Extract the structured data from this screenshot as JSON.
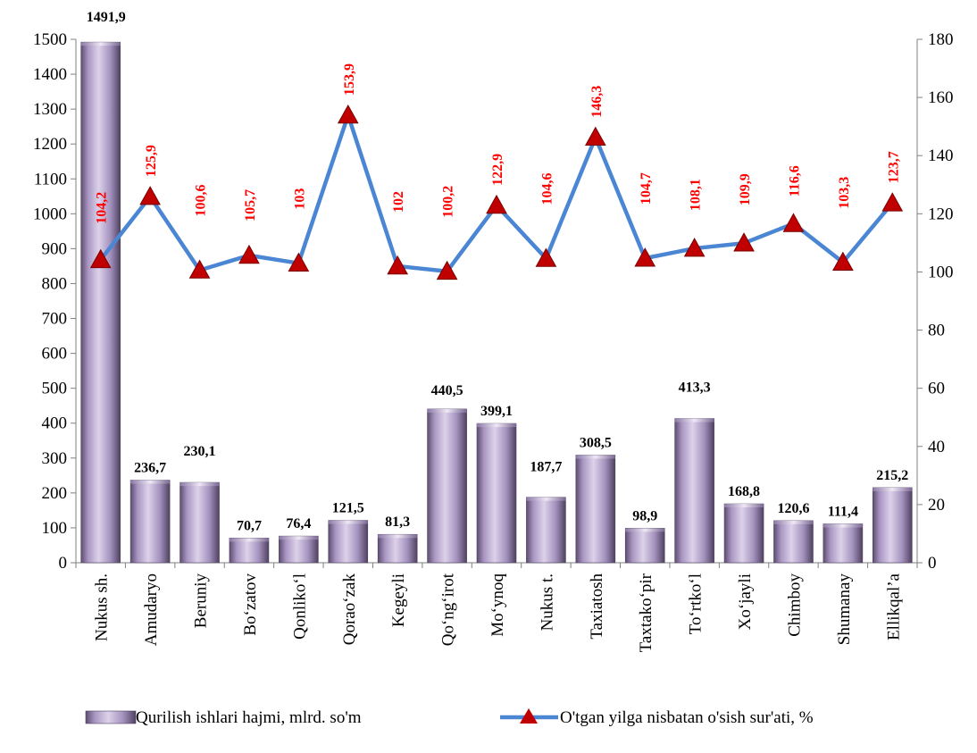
{
  "chart_data": {
    "type": "bar+line",
    "categories": [
      "Nukus sh.",
      "Amudaryo",
      "Beruniy",
      "Bo‘zatov",
      "Qonliko‘l",
      "Qorao‘zak",
      "Kegeyli",
      "Qo‘ng‘irot",
      "Mo‘ynoq",
      "Nukus t.",
      "Taxiatosh",
      "Taxtako‘pir",
      "To‘rtko‘l",
      "Xo‘jayli",
      "Chimboy",
      "Shumanay",
      "Ellikqal’a"
    ],
    "series": [
      {
        "name": "Qurilish ishlari hajmi, mlrd. so'm",
        "type": "bar",
        "axis": "left",
        "values": [
          1491.9,
          236.7,
          230.1,
          70.7,
          76.4,
          121.5,
          81.3,
          440.5,
          399.1,
          187.7,
          308.5,
          98.9,
          413.3,
          168.8,
          120.6,
          111.4,
          215.2
        ],
        "labels": [
          "1491,9",
          "236,7",
          "230,1",
          "70,7",
          "76,4",
          "121,5",
          "81,3",
          "440,5",
          "399,1",
          "187,7",
          "308,5",
          "98,9",
          "413,3",
          "168,8",
          "120,6",
          "111,4",
          "215,2"
        ]
      },
      {
        "name": "O'tgan yilga nisbatan o'sish sur'ati, %",
        "type": "line",
        "axis": "right",
        "values": [
          104.2,
          125.9,
          100.6,
          105.7,
          103,
          153.9,
          102,
          100.2,
          122.9,
          104.6,
          146.3,
          104.7,
          108.1,
          109.9,
          116.6,
          103.3,
          123.7
        ],
        "labels": [
          "104,2",
          "125,9",
          "100,6",
          "105,7",
          "103",
          "153,9",
          "102",
          "100,2",
          "122,9",
          "104,6",
          "146,3",
          "104,7",
          "108,1",
          "109,9",
          "116,6",
          "103,3",
          "123,7"
        ]
      }
    ],
    "ylim_left": [
      0,
      1500
    ],
    "yticks_left": [
      0,
      100,
      200,
      300,
      400,
      500,
      600,
      700,
      800,
      900,
      1000,
      1100,
      1200,
      1300,
      1400,
      1500
    ],
    "ylim_right": [
      0,
      180
    ],
    "yticks_right": [
      0,
      20,
      40,
      60,
      80,
      100,
      120,
      140,
      160,
      180
    ],
    "title": "",
    "xlabel": "",
    "ylabel": "",
    "grid": false,
    "legend_position": "bottom",
    "colors": {
      "bar_light": "#d9cde6",
      "bar_mid": "#a996c2",
      "bar_dark": "#5d4d70",
      "line": "#4a86d4",
      "marker": "#c00000",
      "line_label": "#ff0000"
    }
  }
}
